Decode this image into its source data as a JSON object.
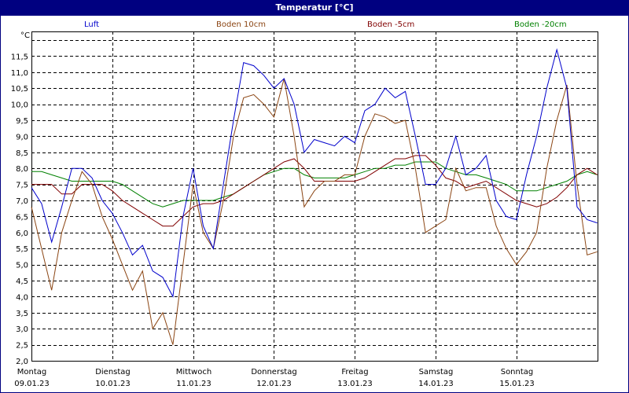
{
  "window": {
    "title": "Temperatur [°C]"
  },
  "legend": [
    {
      "label": "Luft",
      "color": "#0000CC"
    },
    {
      "label": "Boden 10cm",
      "color": "#8B4513"
    },
    {
      "label": "Boden -5cm",
      "color": "#800000"
    },
    {
      "label": "Boden -20cm",
      "color": "#008000"
    }
  ],
  "axes": {
    "y_unit": "°C",
    "y_ticks": [
      "11,5",
      "11,0",
      "10,5",
      "10,0",
      "9,5",
      "9,0",
      "8,5",
      "8,0",
      "7,5",
      "7,0",
      "6,5",
      "6,0",
      "5,5",
      "5,0",
      "4,5",
      "4,0",
      "3,5",
      "3,0",
      "2,5",
      "2,0"
    ],
    "x_days": [
      {
        "day": "Montag",
        "date": "09.01.23"
      },
      {
        "day": "Dienstag",
        "date": "10.01.23"
      },
      {
        "day": "Mittwoch",
        "date": "11.01.23"
      },
      {
        "day": "Donnerstag",
        "date": "12.01.23"
      },
      {
        "day": "Freitag",
        "date": "13.01.23"
      },
      {
        "day": "Samstag",
        "date": "14.01.23"
      },
      {
        "day": "Sonntag",
        "date": "15.01.23"
      }
    ]
  },
  "chart_data": {
    "type": "line",
    "title": "Temperatur [°C]",
    "xlabel": "",
    "ylabel": "°C",
    "ylim": [
      2.0,
      12.0
    ],
    "grid": true,
    "legend_position": "top",
    "x_hours": [
      0,
      3,
      6,
      9,
      12,
      15,
      18,
      21,
      24,
      27,
      30,
      33,
      36,
      39,
      42,
      45,
      48,
      51,
      54,
      57,
      60,
      63,
      66,
      69,
      72,
      75,
      78,
      81,
      84,
      87,
      90,
      93,
      96,
      99,
      102,
      105,
      108,
      111,
      114,
      117,
      120,
      123,
      126,
      129,
      132,
      135,
      138,
      141,
      144,
      147,
      150,
      153,
      156,
      159,
      162,
      165,
      168
    ],
    "categories": [
      "Montag 09.01.23",
      "Dienstag 10.01.23",
      "Mittwoch 11.01.23",
      "Donnerstag 12.01.23",
      "Freitag 13.01.23",
      "Samstag 14.01.23",
      "Sonntag 15.01.23"
    ],
    "series": [
      {
        "name": "Luft",
        "color": "#0000CC",
        "values": [
          7.4,
          6.9,
          5.7,
          6.8,
          8.0,
          8.0,
          7.7,
          7.0,
          6.6,
          6.0,
          5.3,
          5.6,
          4.8,
          4.6,
          4.0,
          6.5,
          8.0,
          6.2,
          5.5,
          7.5,
          9.5,
          11.3,
          11.2,
          10.9,
          10.5,
          10.8,
          10.0,
          8.5,
          8.9,
          8.8,
          8.7,
          9.0,
          8.8,
          9.8,
          10.0,
          10.5,
          10.2,
          10.4,
          9.0,
          7.5,
          7.5,
          8.0,
          9.0,
          7.8,
          8.0,
          8.4,
          7.0,
          6.5,
          6.4,
          7.8,
          9.0,
          10.5,
          11.7,
          10.5,
          6.8,
          6.4,
          6.3
        ]
      },
      {
        "name": "Boden 10cm",
        "color": "#8B4513",
        "values": [
          6.8,
          5.5,
          4.2,
          6.0,
          7.0,
          7.9,
          7.5,
          6.5,
          5.8,
          5.0,
          4.2,
          4.8,
          3.0,
          3.5,
          2.5,
          5.0,
          7.5,
          6.0,
          5.5,
          7.0,
          9.0,
          10.2,
          10.3,
          10.0,
          9.6,
          10.8,
          9.0,
          6.8,
          7.3,
          7.6,
          7.6,
          7.8,
          7.8,
          9.0,
          9.7,
          9.6,
          9.4,
          9.5,
          8.0,
          6.0,
          6.2,
          6.4,
          8.0,
          7.3,
          7.4,
          7.4,
          6.2,
          5.5,
          5.0,
          5.4,
          6.0,
          8.0,
          9.5,
          10.6,
          7.5,
          5.3,
          5.4
        ]
      },
      {
        "name": "Boden -5cm",
        "color": "#800000",
        "values": [
          7.5,
          7.5,
          7.5,
          7.2,
          7.2,
          7.5,
          7.5,
          7.5,
          7.3,
          7.0,
          6.8,
          6.6,
          6.4,
          6.2,
          6.2,
          6.5,
          6.8,
          6.9,
          6.9,
          7.0,
          7.2,
          7.4,
          7.6,
          7.8,
          8.0,
          8.2,
          8.3,
          8.0,
          7.6,
          7.6,
          7.6,
          7.6,
          7.6,
          7.7,
          7.9,
          8.1,
          8.3,
          8.3,
          8.4,
          8.4,
          8.1,
          7.7,
          7.6,
          7.4,
          7.5,
          7.6,
          7.4,
          7.2,
          7.0,
          6.9,
          6.8,
          6.9,
          7.1,
          7.4,
          7.8,
          8.0,
          7.8
        ]
      },
      {
        "name": "Boden -20cm",
        "color": "#008000",
        "values": [
          7.9,
          7.9,
          7.8,
          7.7,
          7.6,
          7.6,
          7.6,
          7.6,
          7.6,
          7.5,
          7.3,
          7.1,
          6.9,
          6.8,
          6.9,
          7.0,
          7.0,
          7.0,
          7.0,
          7.1,
          7.2,
          7.4,
          7.6,
          7.8,
          7.9,
          8.0,
          8.0,
          7.8,
          7.7,
          7.7,
          7.7,
          7.7,
          7.8,
          7.9,
          8.0,
          8.0,
          8.1,
          8.1,
          8.2,
          8.2,
          8.2,
          8.0,
          7.9,
          7.8,
          7.8,
          7.7,
          7.6,
          7.5,
          7.3,
          7.3,
          7.3,
          7.4,
          7.5,
          7.6,
          7.8,
          7.9,
          7.8
        ]
      }
    ]
  }
}
